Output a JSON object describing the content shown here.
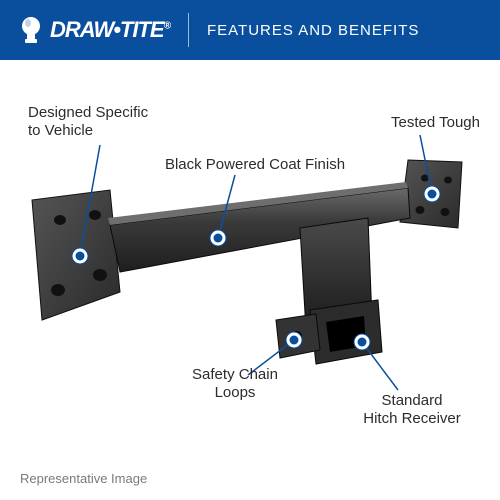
{
  "header": {
    "bg_color": "#0a4f9e",
    "logo_text": "DRAW•TITE",
    "logo_trademark": "®",
    "headline": "FEATURES AND BENEFITS"
  },
  "callouts": {
    "designed": "Designed Specific\nto Vehicle",
    "black_coat": "Black Powered Coat Finish",
    "tested": "Tested Tough",
    "chain": "Safety Chain\nLoops",
    "receiver": "Standard\nHitch Receiver"
  },
  "footnote": "Representative Image",
  "style": {
    "callout_color": "#2c2c2c",
    "leader_color": "#0a4f9e",
    "marker_fill": "#0a4f9e",
    "marker_ring": "#ffffff",
    "footnote_color": "#7a7a7a",
    "hitch_body": "#3a3a3a",
    "hitch_top": "#555555",
    "hitch_shadow": "#1e1e1e"
  }
}
